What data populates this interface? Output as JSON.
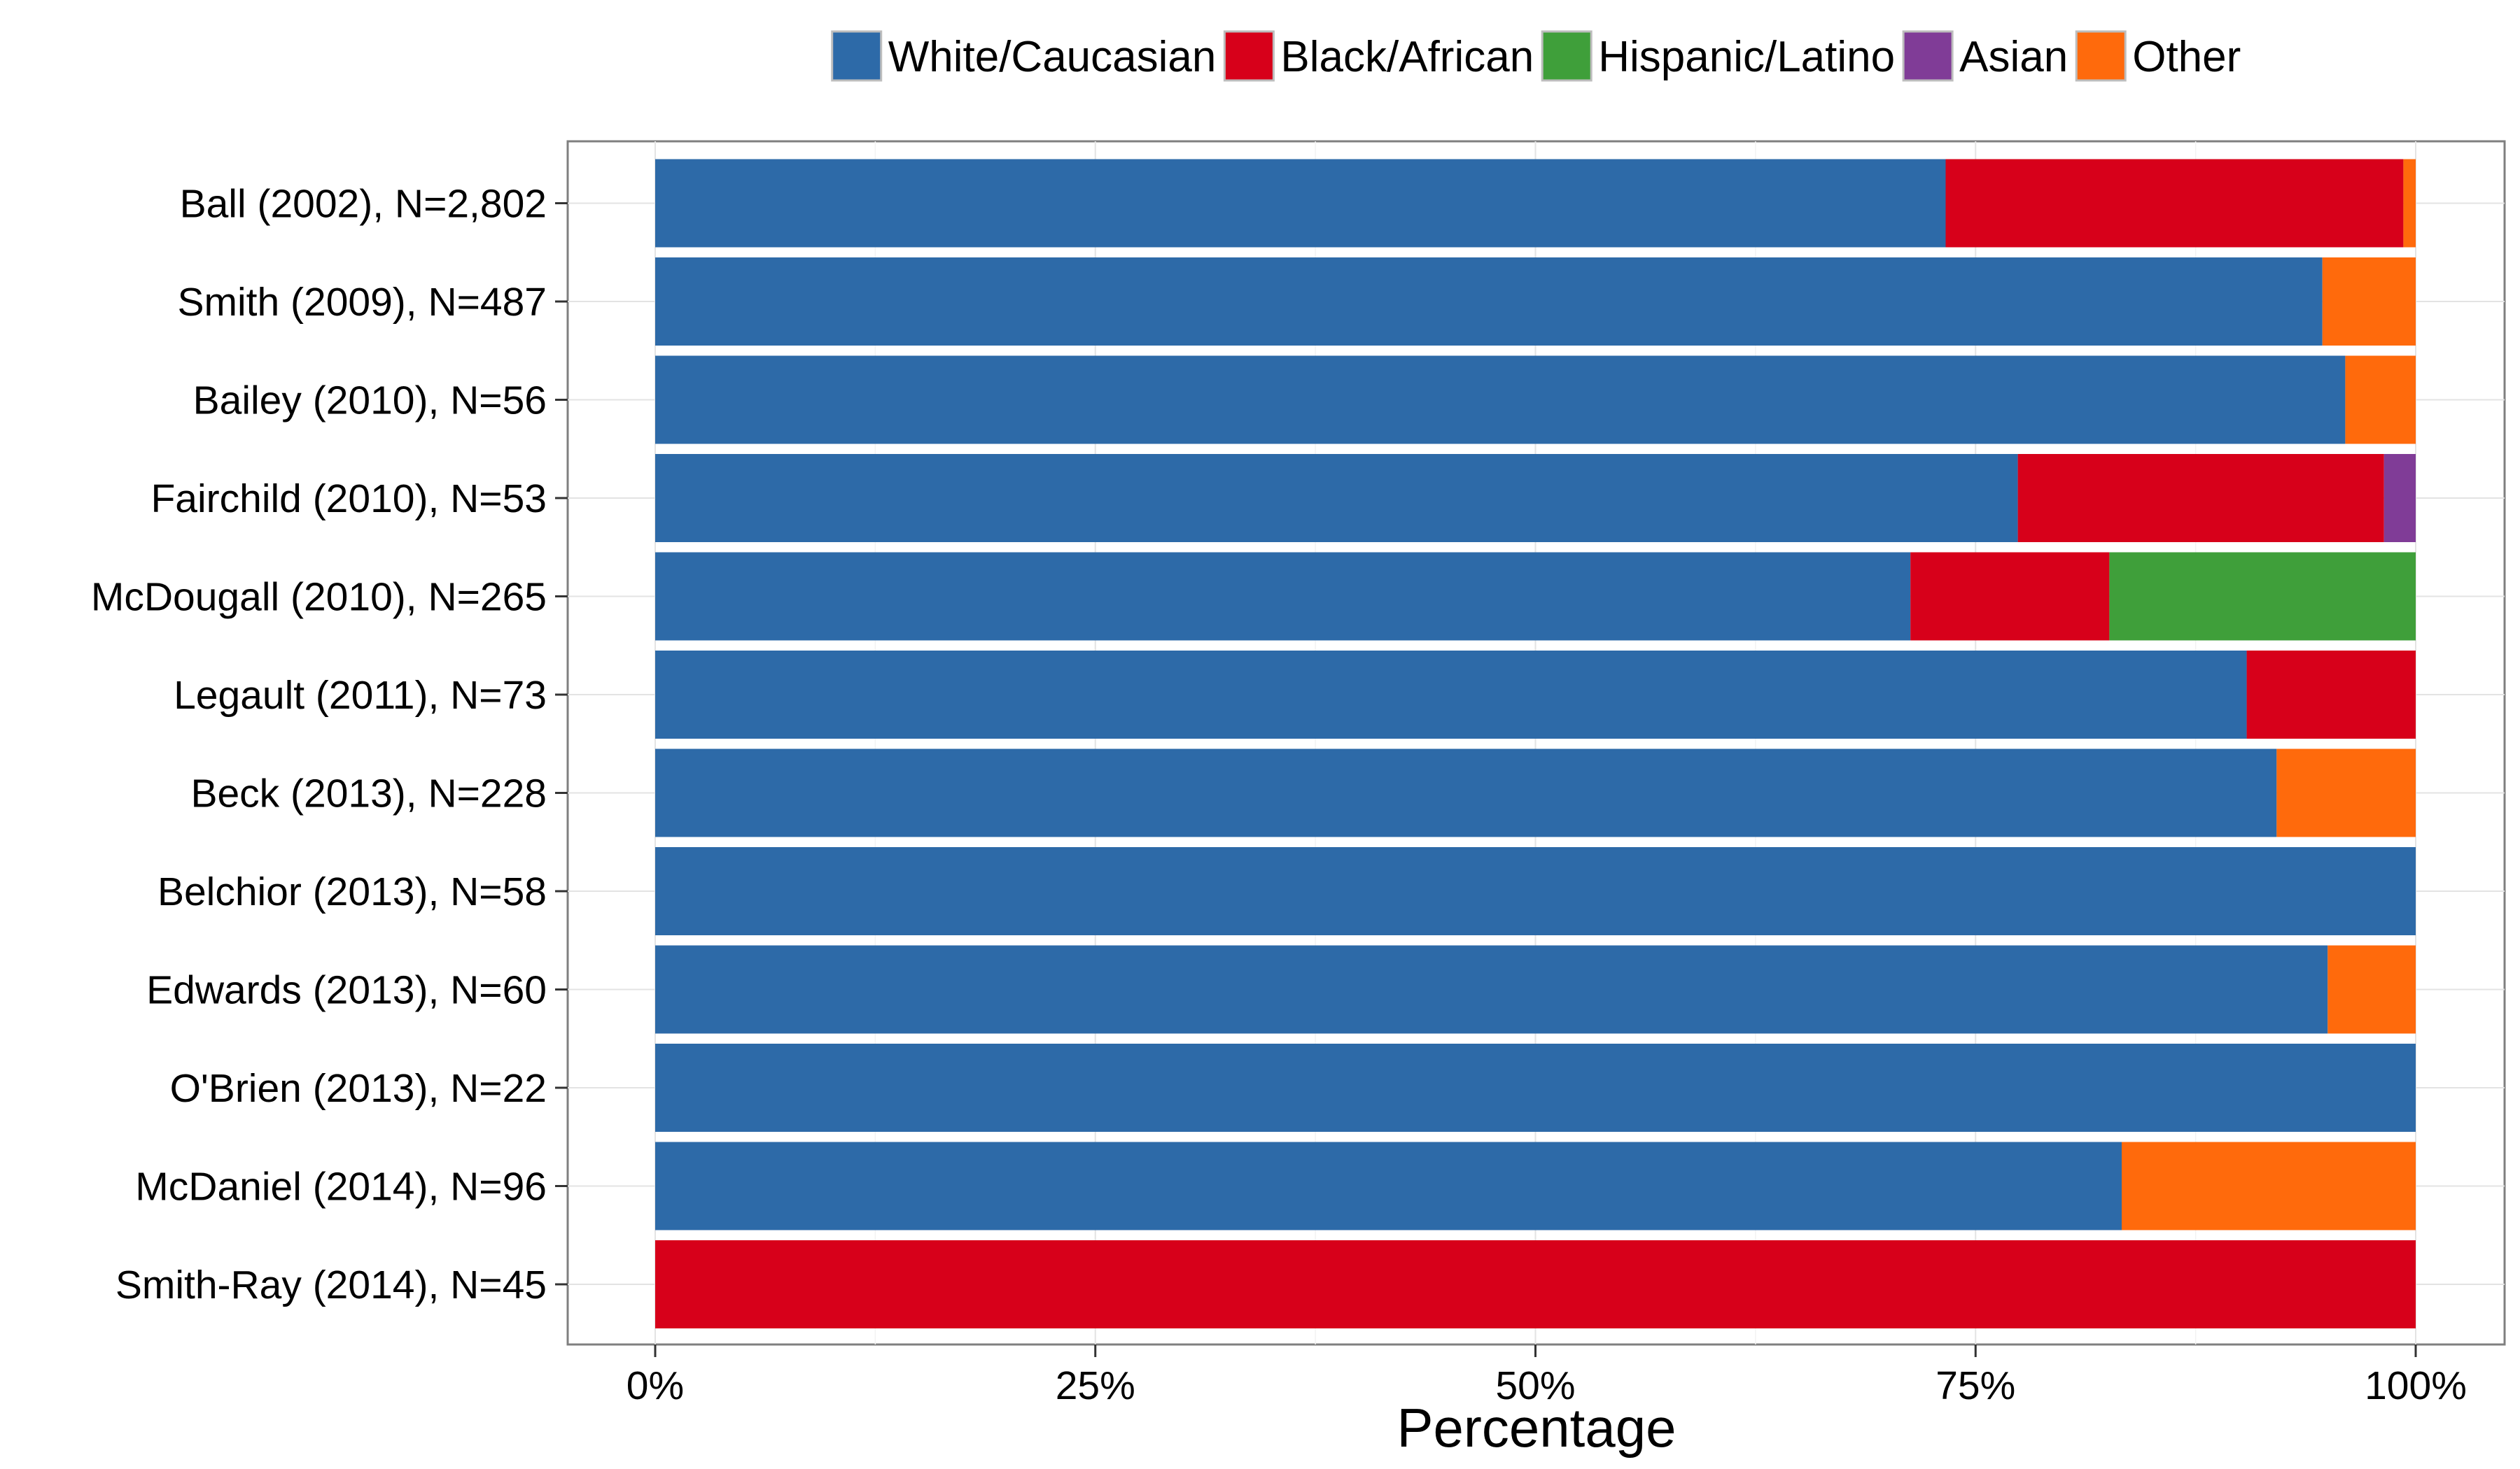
{
  "chart_data": {
    "type": "bar",
    "orientation": "horizontal",
    "stacked": true,
    "xlabel": "Percentage",
    "ylabel": "",
    "xlim": [
      0,
      100
    ],
    "x_ticks": [
      "0%",
      "25%",
      "50%",
      "75%",
      "100%"
    ],
    "x_tick_values": [
      0,
      25,
      50,
      75,
      100
    ],
    "grid": true,
    "legend_position": "top",
    "categories": [
      "Ball (2002), N=2,802",
      "Smith (2009), N=487",
      "Bailey (2010), N=56",
      "Fairchild (2010), N=53",
      "McDougall (2010), N=265",
      "Legault (2011), N=73",
      "Beck (2013), N=228",
      "Belchior (2013), N=58",
      "Edwards (2013), N=60",
      "O'Brien (2013), N=22",
      "McDaniel (2014), N=96",
      "Smith-Ray (2014), N=45"
    ],
    "series": [
      {
        "name": "White/Caucasian",
        "color": "#2D6AA8",
        "values": [
          73.3,
          94.7,
          96.0,
          77.4,
          71.3,
          90.4,
          92.1,
          100,
          95.0,
          100,
          83.3,
          0
        ]
      },
      {
        "name": "Black/African",
        "color": "#D7001A",
        "values": [
          26.0,
          0,
          0,
          20.8,
          11.3,
          9.6,
          0,
          0,
          0,
          0,
          0,
          100
        ]
      },
      {
        "name": "Hispanic/Latino",
        "color": "#3F9F3A",
        "values": [
          0,
          0,
          0,
          0,
          17.4,
          0,
          0,
          0,
          0,
          0,
          0,
          0
        ]
      },
      {
        "name": "Asian",
        "color": "#803C97",
        "values": [
          0,
          0,
          0,
          1.8,
          0,
          0,
          0,
          0,
          0,
          0,
          0,
          0
        ]
      },
      {
        "name": "Other",
        "color": "#FF6A0C",
        "values": [
          0.7,
          5.3,
          4.0,
          0,
          0,
          0,
          7.9,
          0,
          5.0,
          0,
          16.7,
          0
        ]
      }
    ]
  }
}
